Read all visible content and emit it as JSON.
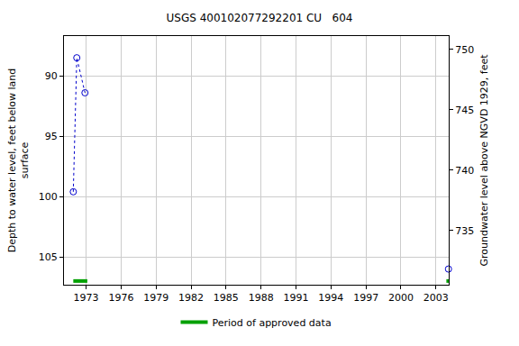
{
  "chart_data": {
    "type": "scatter",
    "title": "USGS 400102077292201 CU   604",
    "ylabel": "Depth to water level, feet below land surface",
    "y2label": "Groundwater level above NGVD 1929, feet",
    "grid": true,
    "legend": "bottom",
    "x": [
      1971.9,
      1972.2,
      1972.9,
      null,
      2004.08
    ],
    "series": [
      {
        "values": [
          99.6,
          88.5,
          91.4,
          null,
          106.0
        ],
        "color": "#0000cc",
        "marker": "open-circle",
        "line_style": "dotted"
      }
    ],
    "approved_periods": {
      "name": "Period of approved data",
      "color": "#00a000",
      "ranges": [
        [
          1971.9,
          1973.1
        ],
        [
          2003.9,
          2004.1
        ]
      ]
    },
    "xlim": [
      1971.1,
      2004.1
    ],
    "xticks": [
      1973,
      1976,
      1979,
      1982,
      1985,
      1988,
      1991,
      1994,
      1997,
      2000,
      2003
    ],
    "ylim": [
      107.3,
      86.7
    ],
    "yticks": [
      90,
      95,
      100,
      105
    ],
    "y2lim": [
      730.5,
      751.1
    ],
    "y2ticks": [
      735,
      740,
      745,
      750
    ]
  }
}
